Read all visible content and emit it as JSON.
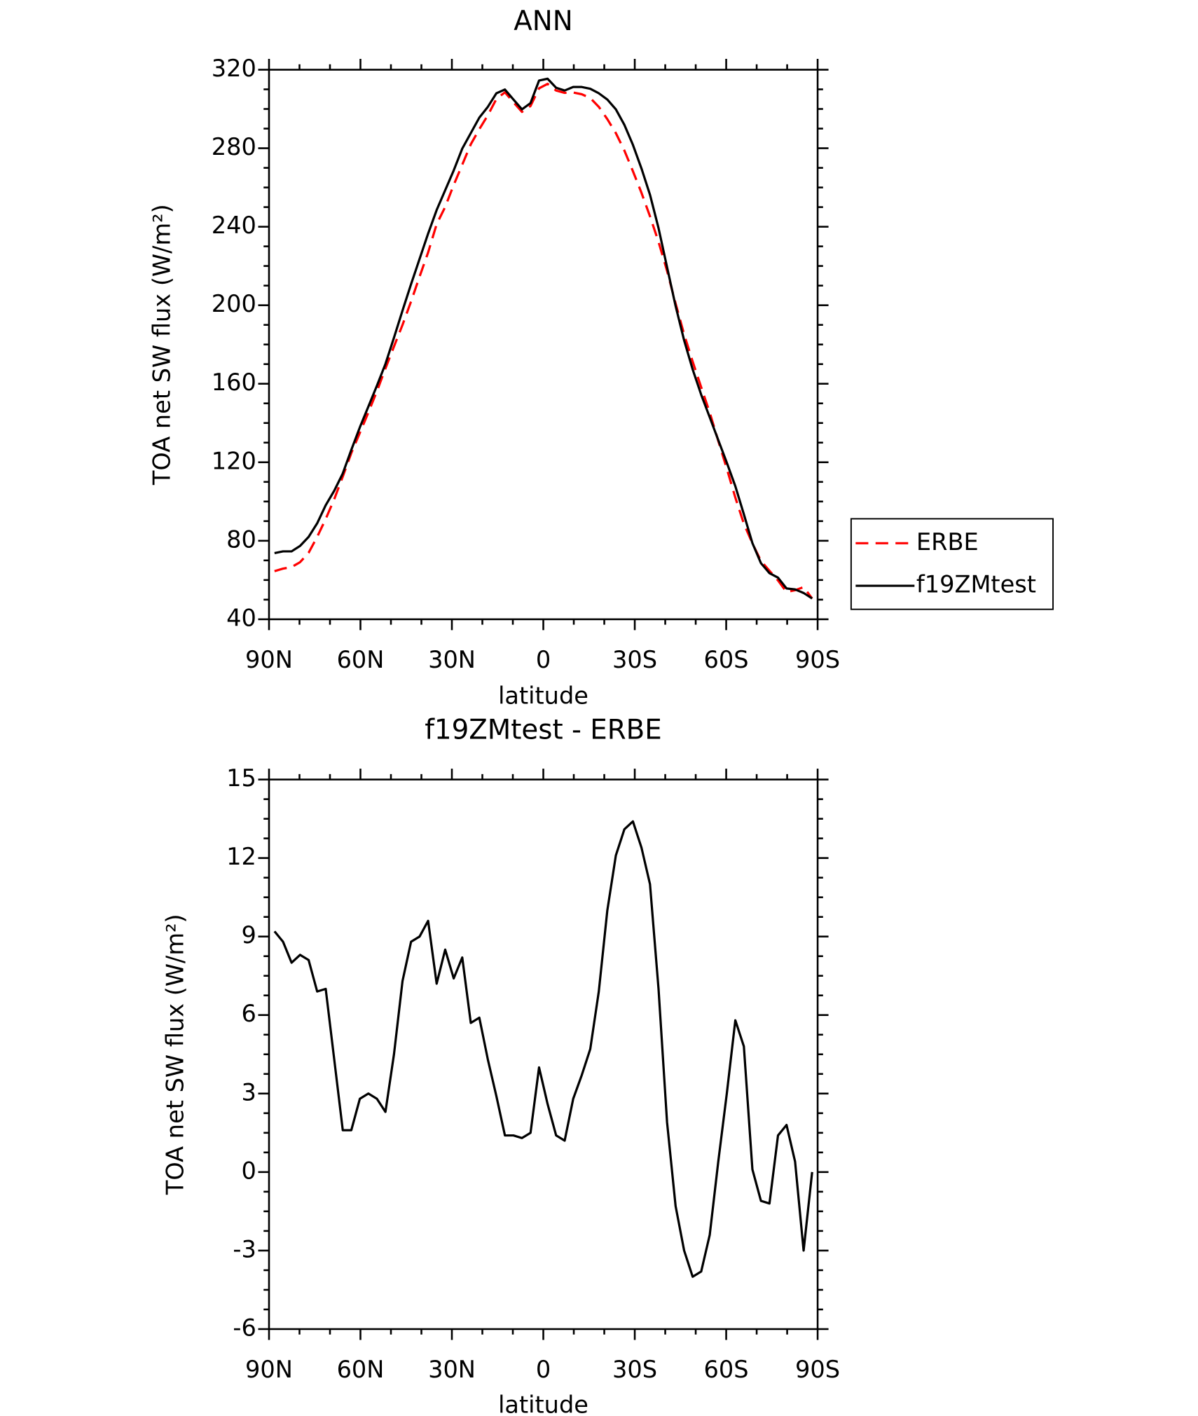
{
  "chart_data": [
    {
      "type": "line",
      "title": "ANN",
      "xlabel": "latitude",
      "ylabel": "TOA net SW flux (W/m²)",
      "x": [
        88.2,
        85.4,
        82.6,
        79.8,
        77,
        74.2,
        71.4,
        68.6,
        65.8,
        63,
        60.2,
        57.4,
        54.6,
        51.8,
        49,
        46.2,
        43.4,
        40.6,
        37.8,
        35,
        32.2,
        29.4,
        26.6,
        23.8,
        21,
        18.2,
        15.4,
        12.6,
        9.8,
        7,
        4.2,
        1.4,
        -1.4,
        -4.2,
        -7,
        -9.8,
        -12.6,
        -15.4,
        -18.2,
        -21,
        -23.8,
        -26.6,
        -29.4,
        -32.2,
        -35,
        -37.8,
        -40.6,
        -43.4,
        -46.2,
        -49,
        -51.8,
        -54.6,
        -57.4,
        -60.2,
        -63,
        -65.8,
        -68.6,
        -71.4,
        -74.2,
        -77,
        -79.8,
        -82.6,
        -85.4,
        -88.2
      ],
      "xlim": [
        90,
        -90
      ],
      "xticks": [
        {
          "value": 90,
          "label": "90N"
        },
        {
          "value": 60,
          "label": "60N"
        },
        {
          "value": 30,
          "label": "30N"
        },
        0,
        {
          "value": -30,
          "label": "30S"
        },
        {
          "value": -60,
          "label": "60S"
        },
        {
          "value": -90,
          "label": "90S"
        }
      ],
      "ylim": [
        40,
        320
      ],
      "yticks": [
        40,
        80,
        120,
        160,
        200,
        240,
        280,
        320
      ],
      "legend": "right",
      "series": [
        {
          "name": "ERBE",
          "color": "#ff0000",
          "line_style": "dashed",
          "values": [
            64.5,
            65.8,
            66.6,
            69.1,
            73.9,
            82.0,
            91.1,
            101.2,
            112.7,
            124.7,
            135.0,
            145.4,
            156.2,
            167.8,
            179.0,
            190.0,
            201.9,
            214.6,
            226.9,
            241.3,
            250.1,
            261.3,
            271.6,
            282.0,
            289.7,
            296.8,
            305.1,
            308.5,
            303.4,
            298.5,
            301.5,
            310.5,
            312.8,
            309.4,
            308.2,
            308.4,
            307.5,
            305.6,
            301.1,
            294.8,
            287.7,
            278.8,
            268.3,
            257.3,
            245.3,
            232.3,
            217.5,
            200.9,
            185.1,
            171.3,
            158.2,
            145.3,
            130.9,
            116.8,
            102.0,
            88.7,
            78.7,
            69.7,
            64.7,
            59.8,
            53.9,
            54.8,
            56.4,
            50.6
          ]
        },
        {
          "name": "f19ZMtest",
          "color": "#000000",
          "line_style": "solid",
          "values": [
            73.7,
            74.6,
            74.6,
            77.4,
            82.0,
            88.9,
            98.1,
            105.5,
            114.3,
            126.3,
            137.8,
            148.4,
            159.0,
            170.1,
            183.5,
            197.3,
            210.7,
            223.6,
            236.5,
            248.5,
            258.6,
            268.7,
            279.8,
            287.7,
            295.6,
            301.1,
            308.0,
            309.9,
            304.8,
            299.8,
            303.0,
            314.5,
            315.4,
            310.8,
            309.4,
            311.2,
            311.2,
            310.3,
            308.0,
            304.8,
            299.8,
            291.9,
            281.7,
            269.7,
            256.3,
            239.3,
            219.4,
            199.6,
            182.1,
            167.3,
            154.4,
            142.9,
            131.3,
            119.8,
            107.8,
            93.5,
            78.8,
            68.6,
            63.5,
            61.2,
            55.7,
            55.2,
            53.4,
            50.6
          ]
        }
      ]
    },
    {
      "type": "line",
      "title": "f19ZMtest - ERBE",
      "xlabel": "latitude",
      "ylabel": "TOA net SW flux (W/m²)",
      "x": [
        88.2,
        85.4,
        82.6,
        79.8,
        77,
        74.2,
        71.4,
        68.6,
        65.8,
        63,
        60.2,
        57.4,
        54.6,
        51.8,
        49,
        46.2,
        43.4,
        40.6,
        37.8,
        35,
        32.2,
        29.4,
        26.6,
        23.8,
        21,
        18.2,
        15.4,
        12.6,
        9.8,
        7,
        4.2,
        1.4,
        -1.4,
        -4.2,
        -7,
        -9.8,
        -12.6,
        -15.4,
        -18.2,
        -21,
        -23.8,
        -26.6,
        -29.4,
        -32.2,
        -35,
        -37.8,
        -40.6,
        -43.4,
        -46.2,
        -49,
        -51.8,
        -54.6,
        -57.4,
        -60.2,
        -63,
        -65.8,
        -68.6,
        -71.4,
        -74.2,
        -77,
        -79.8,
        -82.6,
        -85.4,
        -88.2
      ],
      "xlim": [
        90,
        -90
      ],
      "xticks": [
        {
          "value": 90,
          "label": "90N"
        },
        {
          "value": 60,
          "label": "60N"
        },
        {
          "value": 30,
          "label": "30N"
        },
        0,
        {
          "value": -30,
          "label": "30S"
        },
        {
          "value": -60,
          "label": "60S"
        },
        {
          "value": -90,
          "label": "90S"
        }
      ],
      "ylim": [
        -6,
        15
      ],
      "yticks": [
        -6,
        -3,
        0,
        3,
        6,
        9,
        12,
        15
      ],
      "series": [
        {
          "color": "#000000",
          "line_style": "solid",
          "values": [
            9.2,
            8.8,
            8.0,
            8.3,
            8.1,
            6.9,
            7.0,
            4.3,
            1.6,
            1.6,
            2.8,
            3.0,
            2.8,
            2.3,
            4.5,
            7.3,
            8.8,
            9.0,
            9.6,
            7.2,
            8.5,
            7.4,
            8.2,
            5.7,
            5.9,
            4.3,
            2.9,
            1.4,
            1.4,
            1.3,
            1.5,
            4.0,
            2.6,
            1.4,
            1.2,
            2.8,
            3.7,
            4.7,
            6.9,
            10.0,
            12.1,
            13.1,
            13.4,
            12.4,
            11.0,
            7.0,
            1.9,
            -1.3,
            -3.0,
            -4.0,
            -3.8,
            -2.4,
            0.4,
            3.0,
            5.8,
            4.8,
            0.1,
            -1.1,
            -1.2,
            1.4,
            1.8,
            0.4,
            -3.0,
            0.0
          ]
        }
      ]
    }
  ]
}
